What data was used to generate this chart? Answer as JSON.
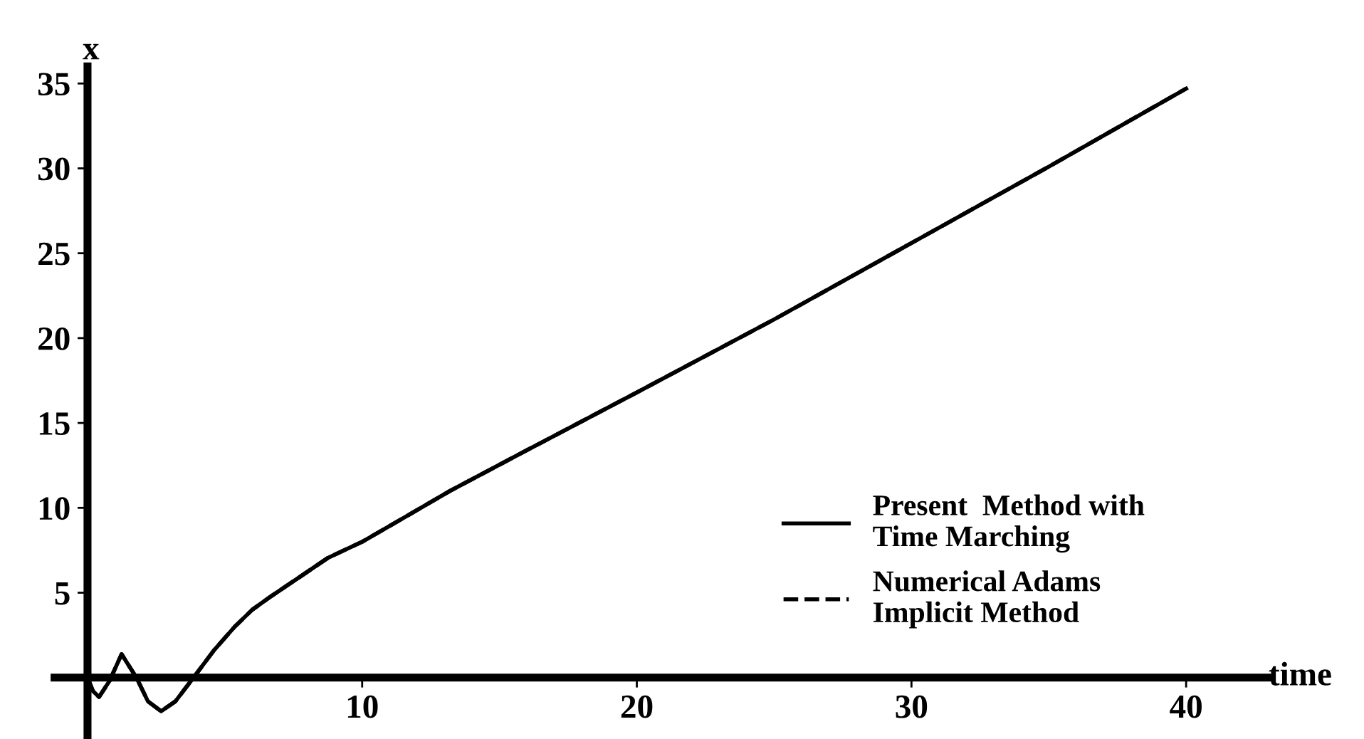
{
  "chart_data": {
    "type": "line",
    "xlabel": "time",
    "ylabel": "x",
    "xlim": [
      -1.2,
      43
    ],
    "ylim": [
      -3.4,
      36
    ],
    "xticks": [
      10,
      20,
      30,
      40
    ],
    "yticks": [
      5,
      10,
      15,
      20,
      25,
      30,
      35
    ],
    "grid": false,
    "legend": "bottom right",
    "series": [
      {
        "name": "Present  Method with\nTime Marching",
        "color": "#000000",
        "line_style": "solid",
        "x": [
          0,
          0.2,
          0.42,
          0.8,
          1.24,
          1.78,
          2.2,
          2.68,
          3.2,
          3.86,
          4.6,
          5.36,
          6.0,
          6.71,
          7.7,
          8.76,
          10,
          11.5,
          13.2,
          16,
          20,
          25,
          30,
          35,
          40
        ],
        "values": [
          0,
          -0.8,
          -1.14,
          -0.2,
          1.38,
          0,
          -1.4,
          -1.98,
          -1.4,
          0,
          1.6,
          3.0,
          4.0,
          4.82,
          5.9,
          7.06,
          8.0,
          9.4,
          11.0,
          13.4,
          16.8,
          21.1,
          25.6,
          30.1,
          34.7
        ]
      },
      {
        "name": "Numerical Adams\nImplicit Method",
        "color": "#000000",
        "line_style": "dashed",
        "x": [
          0,
          0.2,
          0.42,
          0.8,
          1.24,
          1.78,
          2.2,
          2.68,
          3.2,
          3.86,
          4.6,
          5.36,
          6.0,
          6.71,
          7.7,
          8.76,
          10,
          11.5,
          13.2,
          16,
          20,
          25,
          30,
          35,
          40
        ],
        "values": [
          0,
          -0.8,
          -1.14,
          -0.2,
          1.38,
          0,
          -1.4,
          -1.98,
          -1.4,
          0,
          1.6,
          3.0,
          4.0,
          4.82,
          5.9,
          7.06,
          8.0,
          9.4,
          11.0,
          13.4,
          16.8,
          21.1,
          25.6,
          30.1,
          34.7
        ]
      }
    ]
  }
}
